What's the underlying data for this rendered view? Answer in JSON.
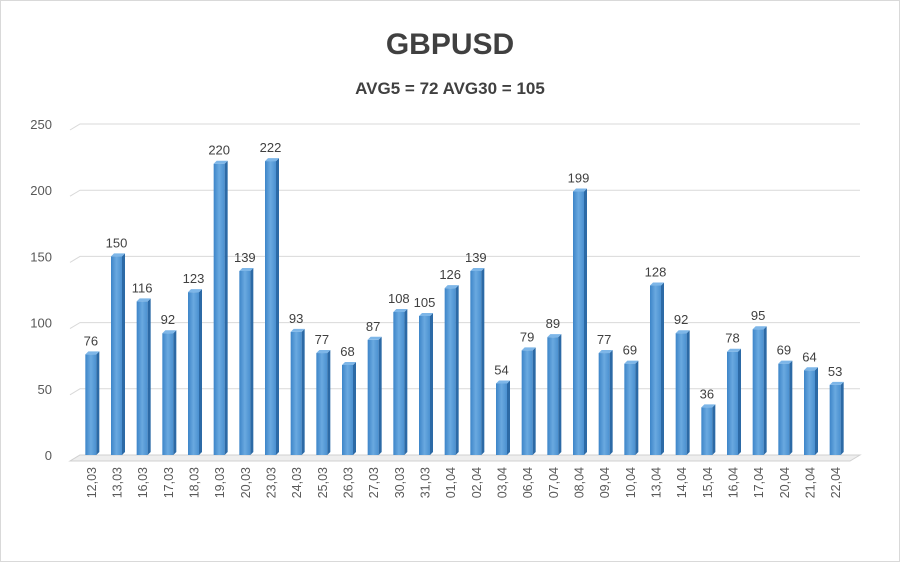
{
  "chart_data": {
    "type": "bar",
    "title": "GBPUSD",
    "subtitle": "AVG5 = 72 AVG30 = 105",
    "xlabel": "",
    "ylabel": "",
    "ylim": [
      0,
      250
    ],
    "yticks": [
      0,
      50,
      100,
      150,
      200,
      250
    ],
    "grid": true,
    "bar_color": "#4a90d0",
    "categories": [
      "12,03",
      "13,03",
      "16,03",
      "17,03",
      "18,03",
      "19,03",
      "20,03",
      "23,03",
      "24,03",
      "25,03",
      "26,03",
      "27,03",
      "30,03",
      "31,03",
      "01,04",
      "02,04",
      "03,04",
      "06,04",
      "07,04",
      "08,04",
      "09,04",
      "10,04",
      "13,04",
      "14,04",
      "15,04",
      "16,04",
      "17,04",
      "20,04",
      "21,04",
      "22,04"
    ],
    "values": [
      76,
      150,
      116,
      92,
      123,
      220,
      139,
      222,
      93,
      77,
      68,
      87,
      108,
      105,
      126,
      139,
      54,
      79,
      89,
      199,
      77,
      69,
      128,
      92,
      36,
      78,
      95,
      69,
      64,
      53
    ]
  }
}
